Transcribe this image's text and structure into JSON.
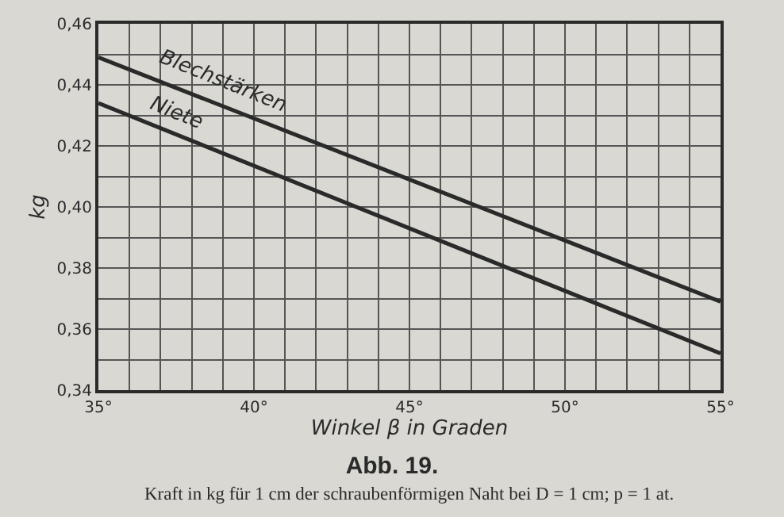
{
  "chart_data": {
    "type": "line",
    "title": "Abb. 19.",
    "xlabel": "Winkel β in Graden",
    "ylabel": "kg",
    "annotations": [
      "Kraft in kg für 1 cm der schraubenförmigen Naht bei D = 1 cm; p = 1 at."
    ],
    "x": [
      35,
      55
    ],
    "series": [
      {
        "name": "Blechstärken",
        "color": "#2a2a2a",
        "values": [
          0.449,
          0.369
        ]
      },
      {
        "name": "Niete",
        "color": "#2a2a2a",
        "values": [
          0.434,
          0.352
        ]
      }
    ],
    "xlim": [
      35,
      55
    ],
    "ylim": [
      0.34,
      0.46
    ],
    "xticks": [
      {
        "value": 35,
        "label": "35°"
      },
      {
        "value": 36,
        "label": null
      },
      {
        "value": 37,
        "label": null
      },
      {
        "value": 38,
        "label": null
      },
      {
        "value": 39,
        "label": null
      },
      {
        "value": 40,
        "label": "40°"
      },
      {
        "value": 41,
        "label": null
      },
      {
        "value": 42,
        "label": null
      },
      {
        "value": 43,
        "label": null
      },
      {
        "value": 44,
        "label": null
      },
      {
        "value": 45,
        "label": "45°"
      },
      {
        "value": 46,
        "label": null
      },
      {
        "value": 47,
        "label": null
      },
      {
        "value": 48,
        "label": null
      },
      {
        "value": 49,
        "label": null
      },
      {
        "value": 50,
        "label": "50°"
      },
      {
        "value": 51,
        "label": null
      },
      {
        "value": 52,
        "label": null
      },
      {
        "value": 53,
        "label": null
      },
      {
        "value": 54,
        "label": null
      },
      {
        "value": 55,
        "label": "55°"
      }
    ],
    "yticks": [
      {
        "value": 0.34,
        "label": "0,34"
      },
      {
        "value": 0.35,
        "label": null
      },
      {
        "value": 0.36,
        "label": "0,36"
      },
      {
        "value": 0.37,
        "label": null
      },
      {
        "value": 0.38,
        "label": "0,38"
      },
      {
        "value": 0.39,
        "label": null
      },
      {
        "value": 0.4,
        "label": "0,40"
      },
      {
        "value": 0.41,
        "label": null
      },
      {
        "value": 0.42,
        "label": "0,42"
      },
      {
        "value": 0.43,
        "label": null
      },
      {
        "value": 0.44,
        "label": "0,44"
      },
      {
        "value": 0.45,
        "label": null
      },
      {
        "value": 0.46,
        "label": "0,46"
      }
    ],
    "grid": true,
    "legend": false,
    "marker": "none",
    "line_style": "solid"
  }
}
